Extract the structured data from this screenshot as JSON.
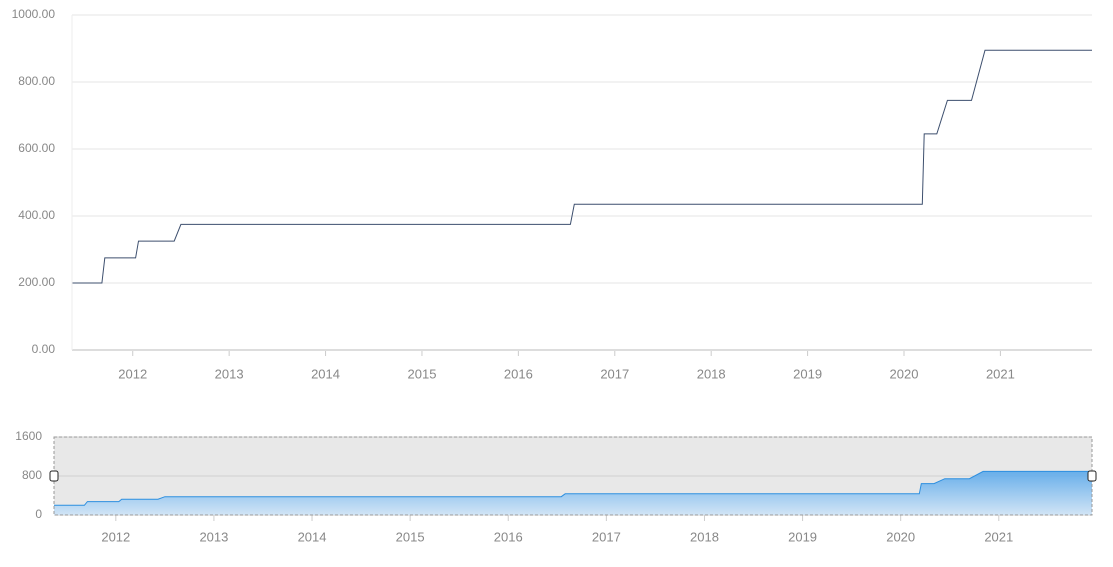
{
  "chart_data": {
    "type": "line",
    "color": "#3d4f6e",
    "x": [
      2011.37,
      2011.68,
      2011.71,
      2012.03,
      2012.06,
      2012.43,
      2012.5,
      2016.54,
      2016.58,
      2020.19,
      2020.21,
      2020.34,
      2020.45,
      2020.7,
      2020.84,
      2021.95
    ],
    "values": [
      200,
      200,
      275,
      275,
      325,
      325,
      375,
      375,
      435,
      435,
      645,
      645,
      745,
      745,
      895,
      895
    ],
    "xlim": [
      2011.37,
      2021.95
    ],
    "xticks": [
      2012,
      2013,
      2014,
      2015,
      2016,
      2017,
      2018,
      2019,
      2020,
      2021
    ],
    "ylim": [
      0,
      1000
    ],
    "yticks": [
      {
        "value": 0,
        "label": "0.00"
      },
      {
        "value": 200,
        "label": "200.00"
      },
      {
        "value": 400,
        "label": "400.00"
      },
      {
        "value": 600,
        "label": "600.00"
      },
      {
        "value": 800,
        "label": "800.00"
      },
      {
        "value": 1000,
        "label": "1000.00"
      }
    ],
    "grid": true,
    "navigator": {
      "ylim": [
        0,
        1600
      ],
      "yticks": [
        0,
        800,
        1600
      ],
      "color": "#2d8fe0"
    }
  }
}
